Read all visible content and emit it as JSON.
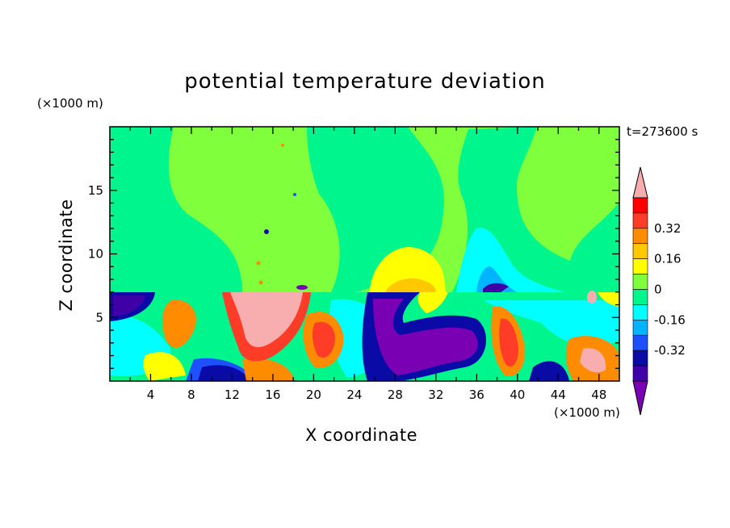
{
  "chart_data": {
    "type": "heatmap",
    "title": "potential temperature deviation",
    "xlabel": "X coordinate",
    "ylabel": "Z coordinate",
    "x_unit_label": "(×1000 m)",
    "y_unit_label": "(×1000 m)",
    "time_label": "t=273600 s",
    "xlim": [
      0,
      50
    ],
    "ylim": [
      0,
      20
    ],
    "x_ticks": [
      4,
      8,
      12,
      16,
      20,
      24,
      28,
      32,
      36,
      40,
      44,
      48
    ],
    "y_ticks": [
      5,
      10,
      15
    ],
    "colorbar": {
      "levels": [
        -0.48,
        -0.4,
        -0.32,
        -0.24,
        -0.16,
        -0.08,
        0,
        0.08,
        0.16,
        0.24,
        0.32,
        0.4,
        0.48
      ],
      "tick_labels": [
        "-0.32",
        "-0.16",
        "0",
        "0.16",
        "0.32"
      ],
      "tick_values": [
        -0.32,
        -0.16,
        0,
        0.16,
        0.32
      ],
      "colors": [
        "#7a00b4",
        "#4000a8",
        "#0a0aa6",
        "#1e50ff",
        "#00b4ff",
        "#00ffff",
        "#00f58c",
        "#80ff3c",
        "#ffff00",
        "#ffc800",
        "#ff8c00",
        "#ff3c28",
        "#ff0000",
        "#f8aeae"
      ],
      "extend": "both"
    },
    "features": [
      {
        "x": 29,
        "z": 9.3,
        "value": 0.14,
        "description": "yellow warm bubble"
      },
      {
        "x": 36.5,
        "z": 10.2,
        "value": -0.1,
        "description": "cyan cool region"
      },
      {
        "x": 30,
        "z": 3.5,
        "value": -0.45,
        "description": "purple cold pool"
      },
      {
        "x": 15.5,
        "z": 4.8,
        "value": 0.45,
        "description": "pink warm anomaly"
      }
    ]
  }
}
